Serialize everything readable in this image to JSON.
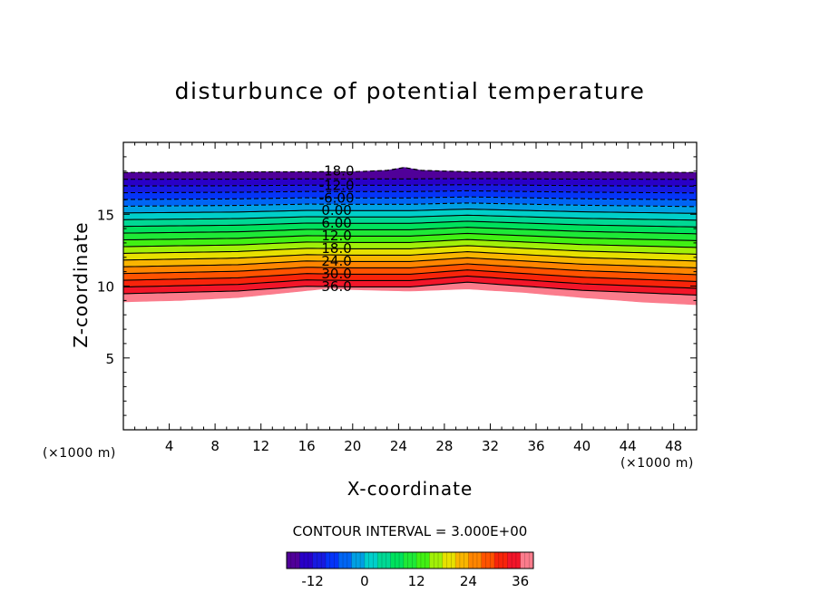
{
  "chart_data": {
    "type": "contour",
    "title": "disturbunce of potential temperature",
    "xlabel": "X-coordinate",
    "ylabel": "Z-coordinate",
    "x_unit": "(×1000 m)",
    "y_unit": "(×1000 m)",
    "xlim": [
      0,
      50
    ],
    "ylim": [
      0,
      20
    ],
    "x_ticks": [
      4,
      8,
      12,
      16,
      20,
      24,
      28,
      32,
      36,
      40,
      44,
      48
    ],
    "y_ticks": [
      5,
      10,
      15
    ],
    "contour_interval_text": "CONTOUR INTERVAL = 3.000E+00",
    "contour_interval": 3,
    "levels_min": -18,
    "levels_max": 39,
    "field_top_km": [
      [
        0,
        17.9
      ],
      [
        10,
        17.95
      ],
      [
        20,
        17.95
      ],
      [
        23,
        18.05
      ],
      [
        24.5,
        18.25
      ],
      [
        26,
        18.05
      ],
      [
        30,
        17.95
      ],
      [
        40,
        17.95
      ],
      [
        50,
        17.9
      ]
    ],
    "field_bottom_km": [
      [
        0,
        8.9
      ],
      [
        5,
        9.0
      ],
      [
        10,
        9.2
      ],
      [
        15,
        9.6
      ],
      [
        18,
        9.85
      ],
      [
        20,
        9.75
      ],
      [
        25,
        9.65
      ],
      [
        30,
        9.8
      ],
      [
        35,
        9.55
      ],
      [
        40,
        9.2
      ],
      [
        45,
        8.9
      ],
      [
        50,
        8.7
      ]
    ],
    "ridge_dz_km": [
      [
        0,
        0
      ],
      [
        10,
        0.2
      ],
      [
        16,
        0.55
      ],
      [
        20,
        0.5
      ],
      [
        25,
        0.5
      ],
      [
        30,
        0.85
      ],
      [
        35,
        0.55
      ],
      [
        40,
        0.25
      ],
      [
        50,
        -0.1
      ]
    ],
    "contour_labels": [
      {
        "text": "-18.0",
        "value": -18
      },
      {
        "text": "-12.0",
        "value": -12
      },
      {
        "text": "-6.00",
        "value": -6
      },
      {
        "text": "0.00",
        "value": 0
      },
      {
        "text": "6.00",
        "value": 6
      },
      {
        "text": "12.0",
        "value": 12
      },
      {
        "text": "18.0",
        "value": 18
      },
      {
        "text": "24.0",
        "value": 24
      },
      {
        "text": "30.0",
        "value": 30
      },
      {
        "text": "36.0",
        "value": 36
      }
    ],
    "colorbar": {
      "min": -18,
      "max": 39,
      "tick_values": [
        -12,
        0,
        12,
        24,
        36
      ],
      "tick_labels": [
        "-12",
        "0",
        "12",
        "24",
        "36"
      ]
    }
  }
}
